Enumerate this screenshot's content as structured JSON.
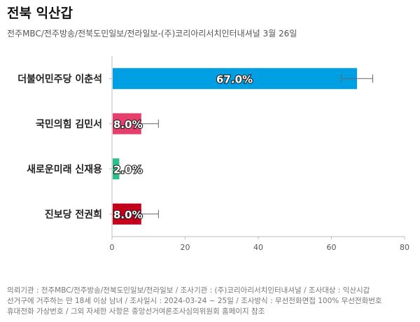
{
  "title": "전북 익산갑",
  "subtitle": "전주MBC/전주방송/전북도민일보/전라일보-(주)코리아리서치인터내셔널 3월 26일",
  "chart_data": {
    "type": "bar",
    "orientation": "horizontal",
    "categories": [
      "더불어민주당 이춘석",
      "국민의힘 김민서",
      "새로운미래 신재용",
      "진보당 전권희"
    ],
    "values": [
      67.0,
      8.0,
      2.0,
      8.0
    ],
    "data_labels": [
      "67.0%",
      "8.0%",
      "2.0%",
      "8.0%"
    ],
    "error_bars": [
      {
        "low": 62.7,
        "high": 71.3
      },
      {
        "low": 4.7,
        "high": 12.7
      },
      null,
      {
        "low": 4.7,
        "high": 12.7
      }
    ],
    "colors": [
      "#009fe3",
      "#e5406b",
      "#2ec08a",
      "#c5001a"
    ],
    "xlim": [
      0,
      80
    ],
    "xticks": [
      0,
      20,
      40,
      60,
      80
    ],
    "grid": false
  },
  "footer": {
    "lines": [
      "의뢰기관 : 전주MBC/전주방송/전북도민일보/전라일보 / 조사기관 : (주)코리아리서치인터내셔널 / 조사대상 : 익산시갑",
      "선거구에 거주하는 만 18세 이상 남녀 / 조사일시 : 2024-03-24 ~ 25일 / 조사방식 : 무선전화면접 100% 무선전화번호",
      "휴대전화 가상번호 / 그외 자세한 사항은 중앙선거여론조사심의위원회 홈페이지 참조"
    ]
  }
}
